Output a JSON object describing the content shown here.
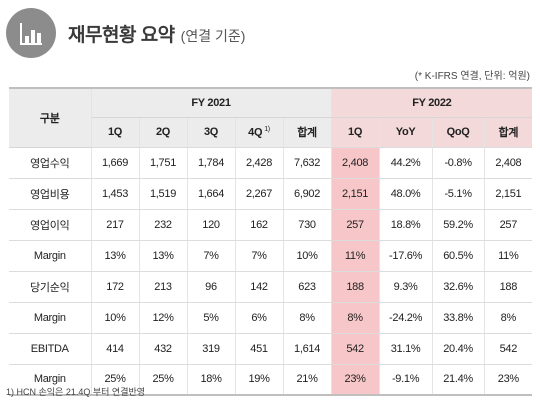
{
  "header": {
    "title": "재무현황 요약",
    "subtitle": "(연결 기준)",
    "icon": "bar-chart-icon"
  },
  "unit_note": "(* K-IFRS 연결, 단위: 억원)",
  "table": {
    "corner_label": "구분",
    "group_2021": "FY 2021",
    "group_2022": "FY 2022",
    "sub_2021": [
      "1Q",
      "2Q",
      "3Q",
      "4Q",
      "합계"
    ],
    "sub_2021_footnote_mark": "1)",
    "sub_2022": [
      "1Q",
      "YoY",
      "QoQ",
      "합계"
    ],
    "rows": [
      {
        "label": "영업수익",
        "v": [
          "1,669",
          "1,751",
          "1,784",
          "2,428",
          "7,632",
          "2,408",
          "44.2%",
          "-0.8%",
          "2,408"
        ]
      },
      {
        "label": "영업비용",
        "v": [
          "1,453",
          "1,519",
          "1,664",
          "2,267",
          "6,902",
          "2,151",
          "48.0%",
          "-5.1%",
          "2,151"
        ]
      },
      {
        "label": "영업이익",
        "v": [
          "217",
          "232",
          "120",
          "162",
          "730",
          "257",
          "18.8%",
          "59.2%",
          "257"
        ]
      },
      {
        "label": "Margin",
        "v": [
          "13%",
          "13%",
          "7%",
          "7%",
          "10%",
          "11%",
          "-17.6%",
          "60.5%",
          "11%"
        ]
      },
      {
        "label": "당기순익",
        "v": [
          "172",
          "213",
          "96",
          "142",
          "623",
          "188",
          "9.3%",
          "32.6%",
          "188"
        ]
      },
      {
        "label": "Margin",
        "v": [
          "10%",
          "12%",
          "5%",
          "6%",
          "8%",
          "8%",
          "-24.2%",
          "33.8%",
          "8%"
        ]
      },
      {
        "label": "EBITDA",
        "v": [
          "414",
          "432",
          "319",
          "451",
          "1,614",
          "542",
          "31.1%",
          "20.4%",
          "542"
        ]
      },
      {
        "label": "Margin",
        "v": [
          "25%",
          "25%",
          "18%",
          "19%",
          "21%",
          "23%",
          "-9.1%",
          "21.4%",
          "23%"
        ]
      }
    ]
  },
  "footnote": "1) HCN 손익은 21.4Q 부터 연결반영",
  "colors": {
    "highlight": "#f7c6c8",
    "header_bg": "#ececec",
    "icon_bg": "#8c8c8c"
  }
}
